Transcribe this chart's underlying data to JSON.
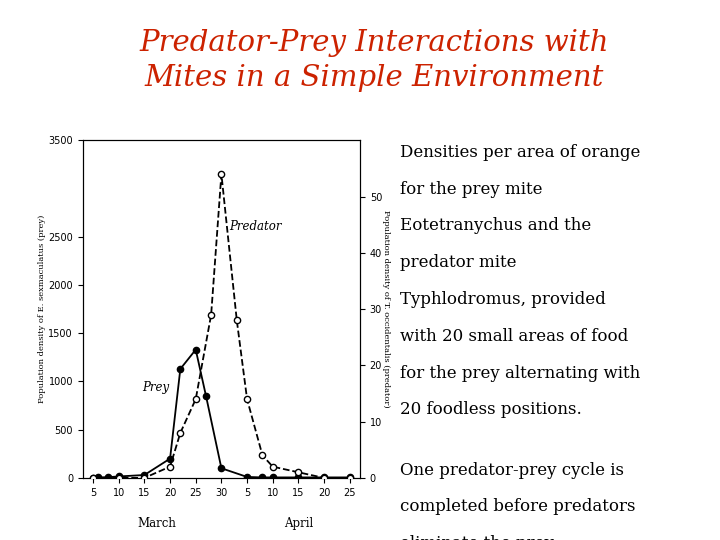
{
  "title": "Predator-Prey Interactions with\nMites in a Simple Environment",
  "title_color": "#CC2200",
  "title_bg": "#FFFF00",
  "bg_color": "#FFFFFF",
  "prey_x": [
    5,
    6,
    8,
    10,
    15,
    20,
    22,
    25,
    27,
    30,
    35,
    38,
    40,
    45,
    50,
    55
  ],
  "prey_y": [
    0,
    5,
    8,
    15,
    30,
    200,
    1130,
    1330,
    850,
    100,
    10,
    5,
    5,
    5,
    5,
    5
  ],
  "pred_x": [
    5,
    10,
    15,
    20,
    22,
    25,
    28,
    30,
    33,
    35,
    38,
    40,
    45,
    50,
    55
  ],
  "pred_y": [
    0,
    0,
    0,
    2,
    8,
    14,
    29,
    54,
    28,
    14,
    4,
    2,
    1,
    0,
    0
  ],
  "prey_label": "Prey",
  "pred_label": "Predator",
  "ylabel_left": "Population density of E. sexmaculatus (prey)",
  "ylabel_right": "Population density of T. occidentalis (predator)",
  "ylim_left": [
    0,
    3500
  ],
  "ylim_right": [
    0,
    60
  ],
  "yticks_left": [
    0,
    500,
    1000,
    1500,
    2000,
    2500,
    3500
  ],
  "yticks_right": [
    0,
    10,
    20,
    30,
    40,
    50
  ],
  "march_ticks": [
    5,
    10,
    15,
    20,
    25,
    30
  ],
  "april_ticks": [
    35,
    40,
    45,
    50,
    55
  ],
  "march_labels": [
    "5",
    "10",
    "15",
    "20",
    "25",
    "30"
  ],
  "april_labels": [
    "5",
    "10",
    "15",
    "20",
    "25"
  ],
  "month_labels": [
    "March",
    "April"
  ],
  "text1_lines": [
    "Densities per area of orange",
    "for the prey mite",
    "Eotetranychus and the",
    "predator mite",
    "Typhlodromus, provided",
    "with 20 small areas of food",
    "for the prey alternating with",
    "20 foodless positions."
  ],
  "text2_lines": [
    "One predator-prey cycle is",
    "completed before predators",
    "eliminate the prey."
  ],
  "text_fontsize": 12,
  "axis_fontsize": 7,
  "label_fontsize": 6,
  "annotation_fontsize": 8.5
}
